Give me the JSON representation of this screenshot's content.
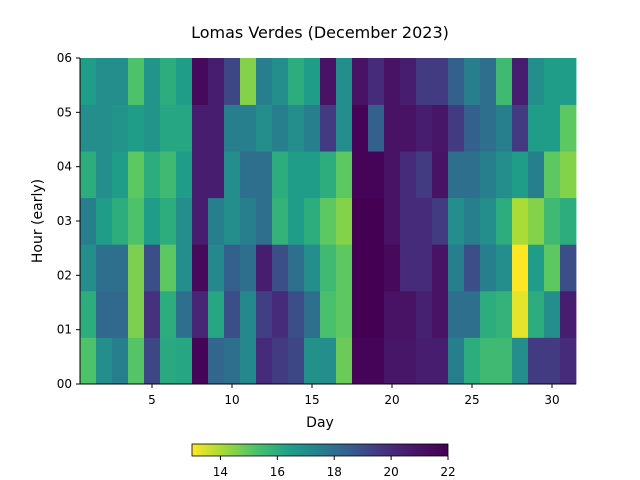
{
  "chart_data": {
    "type": "heatmap",
    "title": "Lomas Verdes (December 2023)",
    "xlabel": "Day",
    "ylabel": "Hour (early)",
    "x_ticks": [
      5,
      10,
      15,
      20,
      25,
      30
    ],
    "y_ticks": [
      "00",
      "01",
      "02",
      "03",
      "04",
      "05",
      "06"
    ],
    "days": [
      1,
      2,
      3,
      4,
      5,
      6,
      7,
      8,
      9,
      10,
      11,
      12,
      13,
      14,
      15,
      16,
      17,
      18,
      19,
      20,
      21,
      22,
      23,
      24,
      25,
      26,
      27,
      28,
      29,
      30,
      31
    ],
    "hour_start": 0,
    "hour_end": 6,
    "colorbar": {
      "colormap": "viridis_r",
      "min": 13,
      "max": 22,
      "ticks": [
        14,
        16,
        18,
        20,
        22
      ],
      "orientation": "horizontal",
      "placement": "below"
    },
    "values": [
      [
        15.2,
        17.0,
        17.5,
        15.1,
        19.2,
        16.1,
        16.2,
        21.8,
        18.3,
        18.0,
        17.2,
        20.0,
        19.5,
        19.2,
        16.9,
        17.0,
        14.8,
        21.8,
        21.8,
        20.8,
        20.8,
        20.5,
        20.5,
        17.5,
        16.0,
        15.5,
        15.5,
        17.0,
        19.5,
        19.5,
        20.0
      ],
      [
        16.0,
        18.2,
        18.2,
        14.6,
        19.8,
        16.0,
        18.0,
        20.2,
        16.2,
        19.0,
        17.2,
        19.4,
        20.0,
        19.0,
        18.0,
        15.3,
        15.0,
        22.0,
        22.0,
        21.0,
        21.0,
        20.4,
        21.0,
        18.0,
        18.0,
        16.0,
        15.8,
        13.3,
        16.0,
        17.0,
        20.5
      ],
      [
        17.0,
        18.0,
        18.0,
        14.6,
        19.0,
        15.0,
        17.0,
        21.5,
        17.2,
        18.5,
        18.0,
        20.5,
        19.0,
        18.0,
        17.0,
        15.5,
        15.0,
        22.0,
        22.0,
        21.5,
        20.0,
        20.0,
        21.0,
        17.5,
        19.0,
        17.5,
        17.0,
        13.0,
        16.5,
        15.0,
        19.0
      ],
      [
        17.5,
        16.5,
        16.0,
        15.2,
        16.5,
        16.0,
        17.0,
        20.5,
        17.5,
        17.0,
        17.5,
        18.0,
        15.8,
        16.5,
        16.0,
        15.0,
        14.5,
        22.0,
        22.0,
        21.0,
        20.0,
        20.0,
        19.5,
        17.0,
        17.5,
        17.0,
        16.0,
        14.0,
        14.5,
        15.5,
        16.0
      ],
      [
        16.0,
        17.0,
        16.5,
        15.0,
        16.0,
        15.5,
        16.5,
        20.5,
        20.5,
        17.0,
        18.0,
        18.0,
        16.0,
        16.5,
        16.5,
        16.0,
        15.0,
        21.8,
        21.8,
        21.0,
        20.0,
        19.5,
        21.0,
        18.0,
        18.0,
        17.5,
        17.0,
        16.5,
        17.5,
        15.0,
        14.5
      ],
      [
        17.0,
        17.0,
        16.8,
        16.5,
        16.8,
        16.2,
        16.2,
        20.5,
        20.5,
        17.5,
        17.5,
        17.0,
        17.5,
        17.0,
        17.5,
        19.5,
        17.0,
        21.8,
        18.5,
        21.0,
        21.0,
        20.5,
        20.8,
        19.5,
        18.5,
        18.0,
        17.5,
        19.5,
        16.5,
        16.5,
        15.0
      ],
      [
        16.5,
        17.0,
        17.0,
        15.2,
        16.8,
        16.0,
        16.5,
        21.5,
        20.5,
        19.2,
        14.5,
        17.5,
        17.0,
        16.0,
        16.5,
        21.0,
        17.0,
        21.0,
        20.0,
        21.0,
        20.5,
        19.5,
        19.5,
        18.5,
        17.5,
        18.0,
        15.5,
        20.5,
        17.0,
        16.5,
        16.5
      ]
    ]
  }
}
